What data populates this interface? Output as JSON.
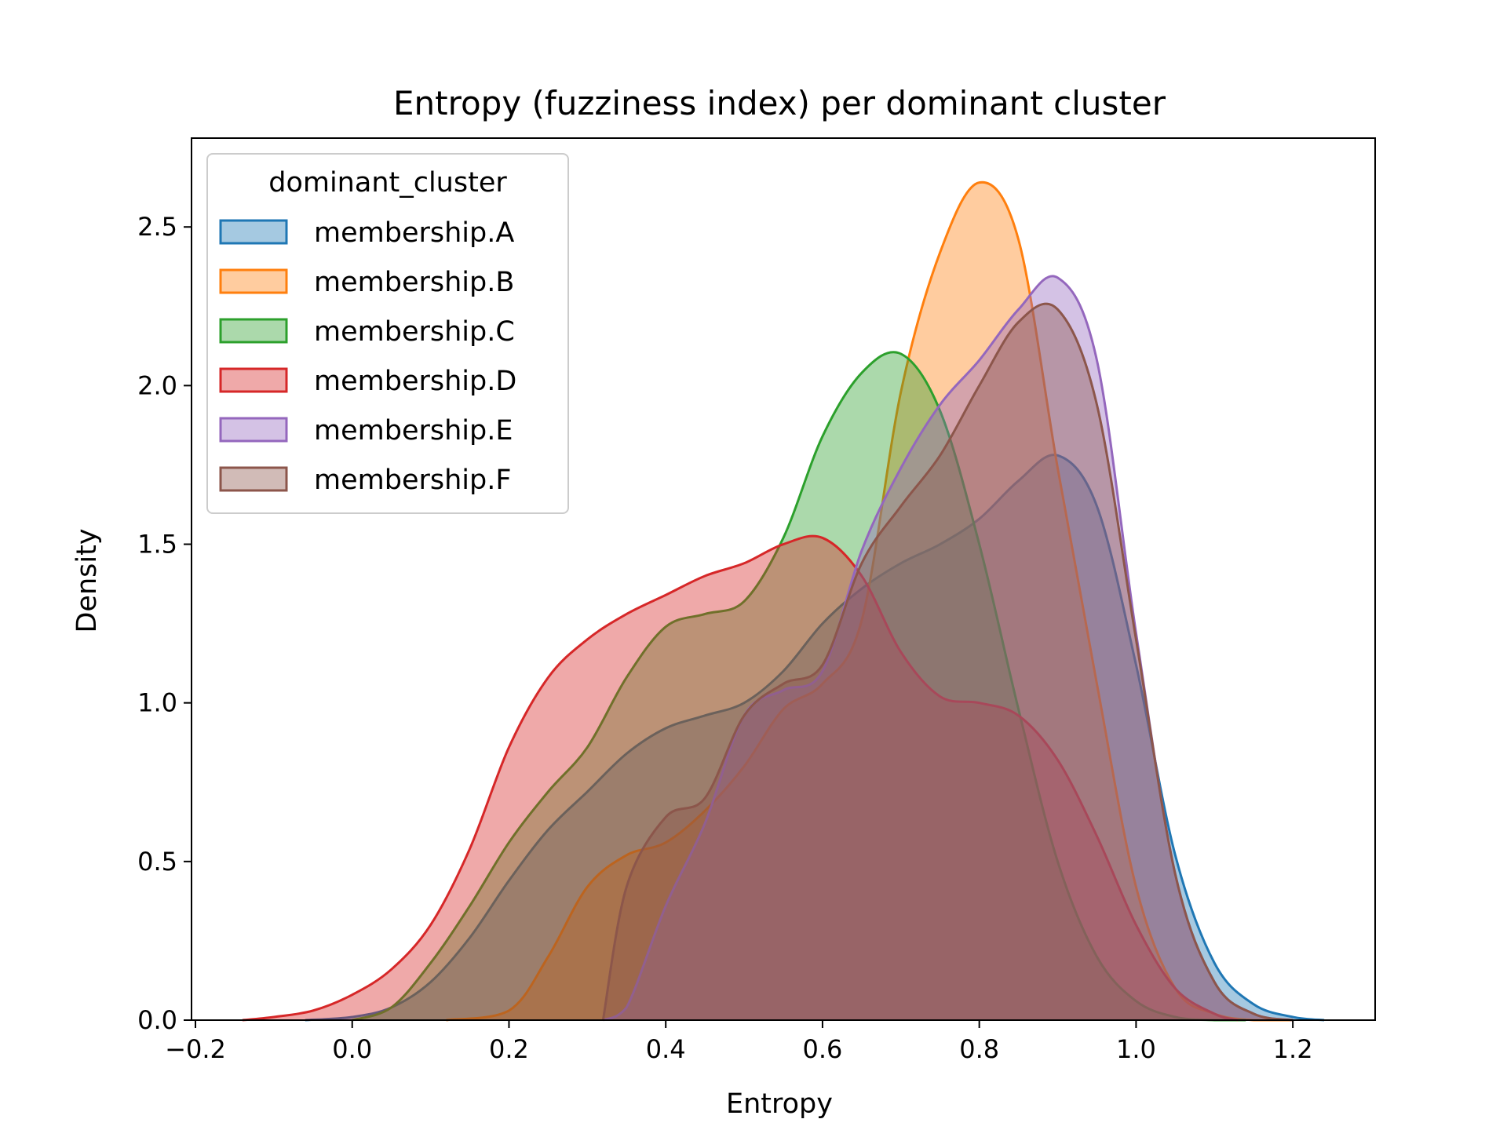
{
  "chart_data": {
    "type": "area",
    "title": "Entropy (fuzziness index) per dominant cluster",
    "xlabel": "Entropy",
    "ylabel": "Density",
    "xlim": [
      -0.205,
      1.305
    ],
    "ylim": [
      0.0,
      2.78
    ],
    "xticks": [
      -0.2,
      0.0,
      0.2,
      0.4,
      0.6,
      0.8,
      1.0,
      1.2
    ],
    "xtick_labels": [
      "−0.2",
      "0.0",
      "0.2",
      "0.4",
      "0.6",
      "0.8",
      "1.0",
      "1.2"
    ],
    "yticks": [
      0.0,
      0.5,
      1.0,
      1.5,
      2.0,
      2.5
    ],
    "ytick_labels": [
      "0.0",
      "0.5",
      "1.0",
      "1.5",
      "2.0",
      "2.5"
    ],
    "grid": false,
    "legend": {
      "title": "dominant_cluster",
      "placement": "upper-left"
    },
    "series": [
      {
        "name": "membership.A",
        "color": "#1f77b4",
        "x": [
          -0.06,
          0.0,
          0.05,
          0.1,
          0.15,
          0.2,
          0.25,
          0.3,
          0.35,
          0.4,
          0.45,
          0.5,
          0.55,
          0.6,
          0.65,
          0.7,
          0.75,
          0.8,
          0.85,
          0.9,
          0.95,
          1.0,
          1.05,
          1.1,
          1.15,
          1.2,
          1.24
        ],
        "y": [
          0.0,
          0.01,
          0.04,
          0.12,
          0.26,
          0.44,
          0.6,
          0.72,
          0.84,
          0.92,
          0.96,
          1.0,
          1.1,
          1.25,
          1.36,
          1.44,
          1.5,
          1.58,
          1.7,
          1.78,
          1.62,
          1.12,
          0.52,
          0.18,
          0.05,
          0.01,
          0.0
        ]
      },
      {
        "name": "membership.B",
        "color": "#ff7f0e",
        "x": [
          0.12,
          0.2,
          0.25,
          0.3,
          0.35,
          0.4,
          0.45,
          0.5,
          0.55,
          0.6,
          0.65,
          0.7,
          0.75,
          0.8,
          0.85,
          0.9,
          0.95,
          1.0,
          1.05,
          1.1,
          1.15,
          1.2
        ],
        "y": [
          0.0,
          0.03,
          0.2,
          0.42,
          0.52,
          0.56,
          0.66,
          0.8,
          0.98,
          1.06,
          1.26,
          1.98,
          2.42,
          2.64,
          2.46,
          1.74,
          1.06,
          0.42,
          0.1,
          0.02,
          0.0,
          0.0
        ]
      },
      {
        "name": "membership.C",
        "color": "#2ca02c",
        "x": [
          0.0,
          0.05,
          0.1,
          0.15,
          0.2,
          0.25,
          0.3,
          0.35,
          0.4,
          0.45,
          0.5,
          0.55,
          0.6,
          0.65,
          0.7,
          0.75,
          0.8,
          0.85,
          0.9,
          0.95,
          1.0,
          1.05,
          1.1,
          1.14
        ],
        "y": [
          0.0,
          0.04,
          0.18,
          0.36,
          0.56,
          0.72,
          0.86,
          1.08,
          1.24,
          1.28,
          1.32,
          1.52,
          1.84,
          2.04,
          2.1,
          1.92,
          1.5,
          0.98,
          0.5,
          0.2,
          0.06,
          0.01,
          0.0,
          0.0
        ]
      },
      {
        "name": "membership.D",
        "color": "#d62728",
        "x": [
          -0.14,
          -0.1,
          -0.05,
          0.0,
          0.05,
          0.1,
          0.15,
          0.2,
          0.25,
          0.3,
          0.35,
          0.4,
          0.45,
          0.5,
          0.55,
          0.6,
          0.65,
          0.7,
          0.75,
          0.8,
          0.85,
          0.9,
          0.95,
          1.0,
          1.05,
          1.1,
          1.13
        ],
        "y": [
          0.0,
          0.01,
          0.03,
          0.08,
          0.16,
          0.3,
          0.54,
          0.86,
          1.08,
          1.2,
          1.28,
          1.34,
          1.4,
          1.44,
          1.5,
          1.52,
          1.4,
          1.16,
          1.02,
          1.0,
          0.96,
          0.82,
          0.58,
          0.3,
          0.1,
          0.02,
          0.0
        ]
      },
      {
        "name": "membership.E",
        "color": "#9467bd",
        "x": [
          0.32,
          0.35,
          0.4,
          0.45,
          0.5,
          0.55,
          0.6,
          0.65,
          0.7,
          0.75,
          0.8,
          0.85,
          0.9,
          0.95,
          1.0,
          1.05,
          1.1,
          1.15,
          1.2
        ],
        "y": [
          0.0,
          0.04,
          0.36,
          0.62,
          0.96,
          1.04,
          1.1,
          1.48,
          1.74,
          1.94,
          2.08,
          2.24,
          2.34,
          2.08,
          1.22,
          0.46,
          0.12,
          0.02,
          0.0
        ]
      },
      {
        "name": "membership.F",
        "color": "#8c564b",
        "x": [
          0.32,
          0.35,
          0.4,
          0.45,
          0.5,
          0.55,
          0.6,
          0.65,
          0.7,
          0.75,
          0.8,
          0.85,
          0.9,
          0.95,
          1.0,
          1.05,
          1.1,
          1.15,
          1.2
        ],
        "y": [
          0.0,
          0.42,
          0.64,
          0.7,
          0.96,
          1.06,
          1.12,
          1.44,
          1.62,
          1.78,
          2.0,
          2.2,
          2.24,
          1.94,
          1.2,
          0.46,
          0.12,
          0.02,
          0.0
        ]
      }
    ]
  }
}
